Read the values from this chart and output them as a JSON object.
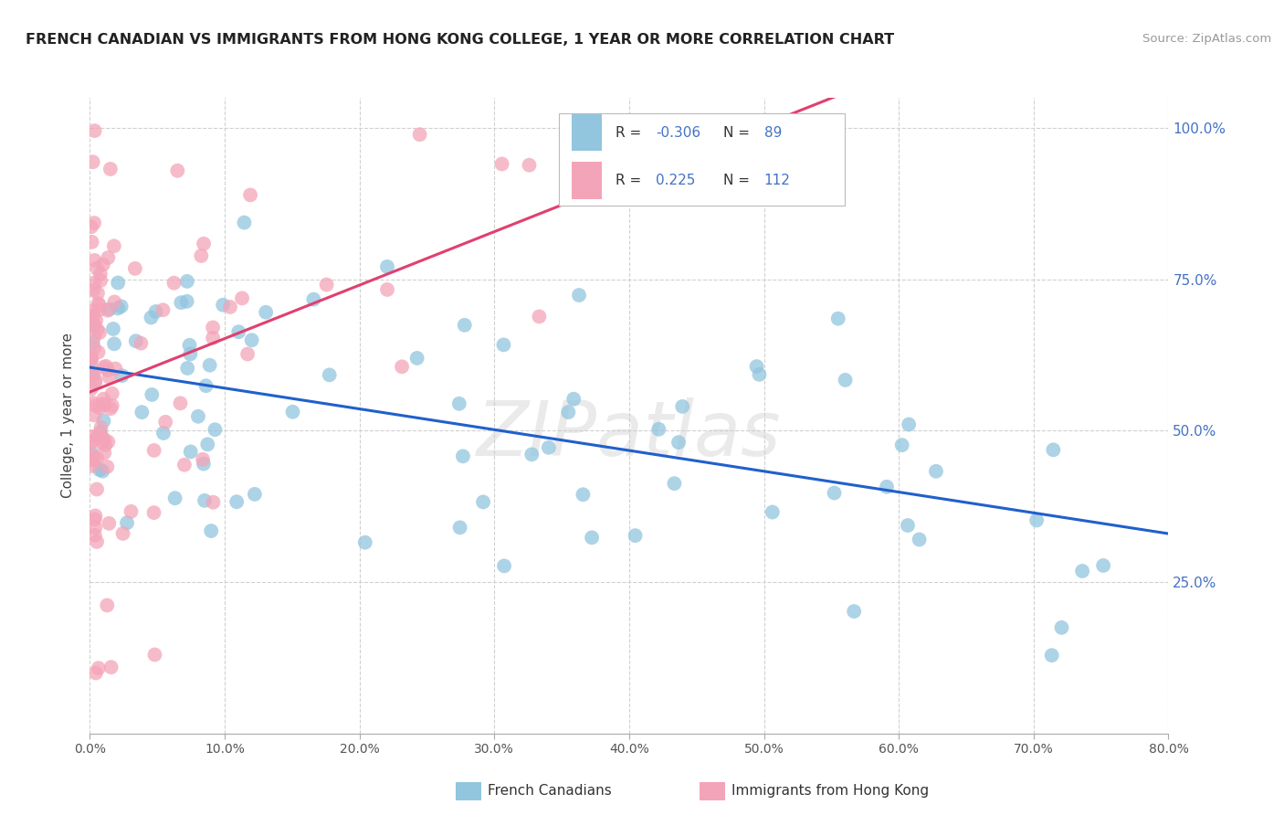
{
  "title": "FRENCH CANADIAN VS IMMIGRANTS FROM HONG KONG COLLEGE, 1 YEAR OR MORE CORRELATION CHART",
  "source": "Source: ZipAtlas.com",
  "ylabel_label": "College, 1 year or more",
  "legend_label1": "French Canadians",
  "legend_label2": "Immigrants from Hong Kong",
  "R1": "-0.306",
  "N1": "89",
  "R2": "0.225",
  "N2": "112",
  "color_blue": "#92c5de",
  "color_pink": "#f4a4b8",
  "trendline_blue": "#2060cc",
  "trendline_pink": "#e04070",
  "watermark": "ZIPatlas",
  "xlim": [
    0.0,
    0.8
  ],
  "ylim": [
    0.0,
    1.05
  ],
  "x_ticks": [
    0.0,
    0.1,
    0.2,
    0.3,
    0.4,
    0.5,
    0.6,
    0.7,
    0.8
  ],
  "y_ticks": [
    0.25,
    0.5,
    0.75,
    1.0
  ]
}
